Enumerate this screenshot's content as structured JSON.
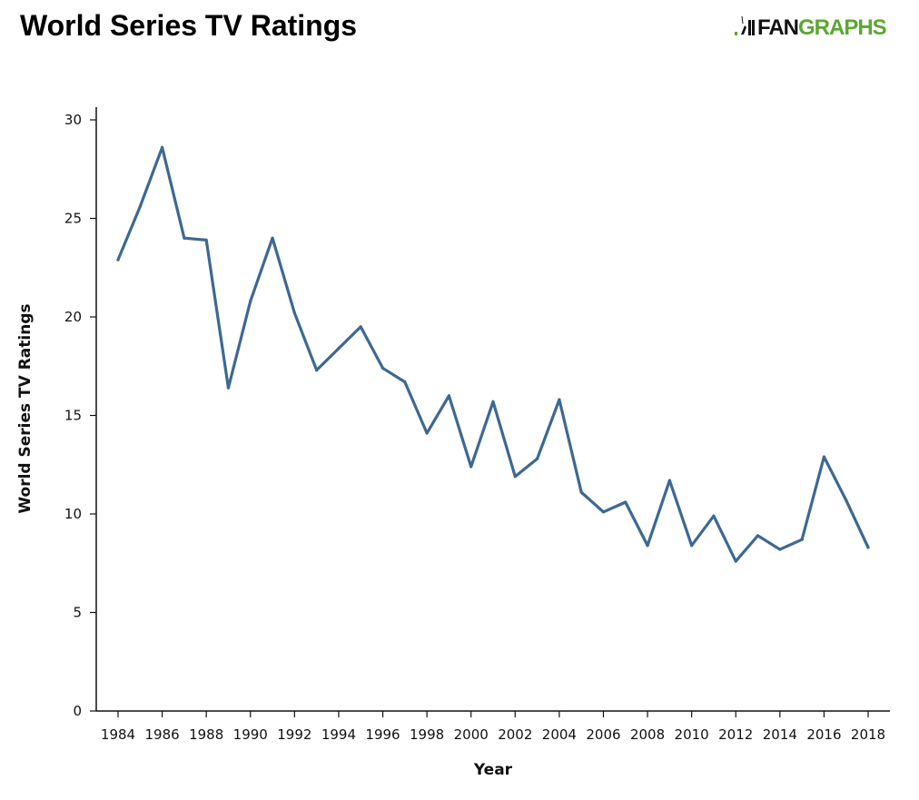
{
  "header": {
    "title": "World Series TV Ratings"
  },
  "logo": {
    "part1": "FAN",
    "part2": "GRAPHS",
    "accent": "#5aa832"
  },
  "chart_data": {
    "type": "line",
    "title": "World Series TV Ratings",
    "xlabel": "Year",
    "ylabel": "World Series TV Ratings",
    "x": [
      1984,
      1985,
      1986,
      1987,
      1988,
      1989,
      1990,
      1991,
      1992,
      1993,
      1994,
      1995,
      1996,
      1997,
      1998,
      1999,
      2000,
      2001,
      2002,
      2003,
      2004,
      2005,
      2006,
      2007,
      2008,
      2009,
      2010,
      2011,
      2012,
      2013,
      2014,
      2015,
      2016,
      2017,
      2018
    ],
    "series": [
      {
        "name": "World Series TV Ratings",
        "color": "#3d6894",
        "values": [
          22.9,
          25.6,
          28.6,
          24.0,
          23.9,
          16.4,
          20.8,
          24.0,
          20.2,
          17.3,
          18.4,
          19.5,
          17.4,
          16.7,
          14.1,
          16.0,
          12.4,
          15.7,
          11.9,
          12.8,
          15.8,
          11.1,
          10.1,
          10.6,
          8.4,
          11.7,
          8.4,
          9.9,
          7.6,
          8.9,
          8.2,
          8.7,
          12.9,
          10.7,
          8.3
        ]
      }
    ],
    "xticks": [
      "1984",
      "1986",
      "1988",
      "1990",
      "1992",
      "1994",
      "1996",
      "1998",
      "2000",
      "2002",
      "2004",
      "2006",
      "2008",
      "2010",
      "2012",
      "2014",
      "2016",
      "2018"
    ],
    "yticks": [
      "0",
      "5",
      "10",
      "15",
      "20",
      "25",
      "30"
    ],
    "xlim": [
      1984,
      2018
    ],
    "ylim": [
      0,
      30
    ],
    "grid": false,
    "legend": "none"
  }
}
